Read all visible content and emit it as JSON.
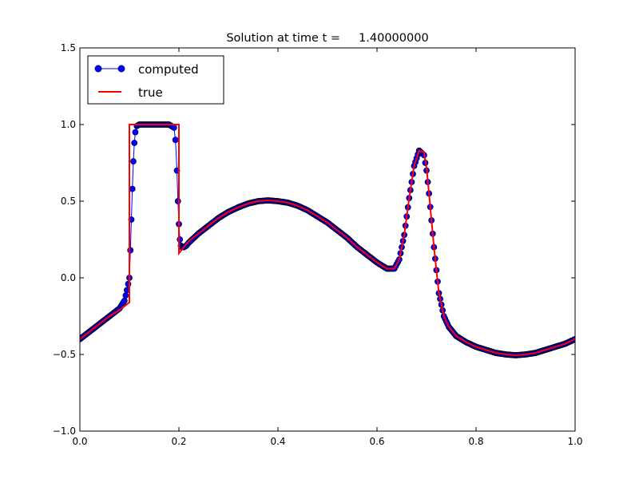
{
  "chart_data": {
    "type": "line",
    "title": "Solution at time t =     1.40000000",
    "xlabel": "",
    "ylabel": "",
    "xlim": [
      0.0,
      1.0
    ],
    "ylim": [
      -1.0,
      1.5
    ],
    "x_ticks": [
      "0.0",
      "0.2",
      "0.4",
      "0.6",
      "0.8",
      "1.0"
    ],
    "y_ticks": [
      "−1.0",
      "−0.5",
      "0.0",
      "0.5",
      "1.0",
      "1.5"
    ],
    "x_tick_values": [
      0.0,
      0.2,
      0.4,
      0.6,
      0.8,
      1.0
    ],
    "y_tick_values": [
      -1.0,
      -0.5,
      0.0,
      0.5,
      1.0,
      1.5
    ],
    "grid": false,
    "legend_position": "upper-left",
    "series": [
      {
        "name": "computed",
        "style": "line-with-circle-markers",
        "color": "#0000ff",
        "marker_edge_color": "#000000",
        "x": [
          0.0,
          0.02,
          0.04,
          0.06,
          0.08,
          0.09,
          0.095,
          0.1,
          0.102,
          0.104,
          0.106,
          0.108,
          0.11,
          0.112,
          0.115,
          0.12,
          0.14,
          0.16,
          0.18,
          0.19,
          0.193,
          0.196,
          0.198,
          0.2,
          0.202,
          0.204,
          0.206,
          0.208,
          0.21,
          0.215,
          0.22,
          0.24,
          0.26,
          0.28,
          0.3,
          0.32,
          0.34,
          0.36,
          0.38,
          0.4,
          0.42,
          0.44,
          0.46,
          0.48,
          0.5,
          0.52,
          0.54,
          0.56,
          0.58,
          0.6,
          0.62,
          0.635,
          0.645,
          0.655,
          0.665,
          0.675,
          0.685,
          0.695,
          0.7,
          0.705,
          0.715,
          0.725,
          0.735,
          0.745,
          0.76,
          0.78,
          0.8,
          0.82,
          0.84,
          0.86,
          0.88,
          0.9,
          0.92,
          0.94,
          0.96,
          0.98,
          1.0
        ],
        "y": [
          -0.4,
          -0.35,
          -0.3,
          -0.25,
          -0.2,
          -0.15,
          -0.08,
          0.0,
          0.18,
          0.38,
          0.58,
          0.76,
          0.88,
          0.95,
          0.99,
          1.0,
          1.0,
          1.0,
          1.0,
          0.98,
          0.9,
          0.7,
          0.5,
          0.35,
          0.25,
          0.21,
          0.2,
          0.2,
          0.2,
          0.21,
          0.23,
          0.29,
          0.34,
          0.39,
          0.43,
          0.46,
          0.485,
          0.5,
          0.505,
          0.5,
          0.49,
          0.47,
          0.44,
          0.4,
          0.36,
          0.31,
          0.26,
          0.2,
          0.15,
          0.1,
          0.06,
          0.06,
          0.12,
          0.28,
          0.52,
          0.73,
          0.83,
          0.8,
          0.7,
          0.55,
          0.2,
          -0.1,
          -0.25,
          -0.32,
          -0.38,
          -0.42,
          -0.45,
          -0.47,
          -0.49,
          -0.5,
          -0.505,
          -0.5,
          -0.49,
          -0.47,
          -0.45,
          -0.43,
          -0.4
        ]
      },
      {
        "name": "true",
        "style": "line",
        "color": "#ff0000",
        "x": [
          0.0,
          0.02,
          0.04,
          0.06,
          0.08,
          0.1,
          0.1,
          0.2,
          0.2,
          0.22,
          0.24,
          0.26,
          0.28,
          0.3,
          0.32,
          0.34,
          0.36,
          0.38,
          0.4,
          0.42,
          0.44,
          0.46,
          0.48,
          0.5,
          0.52,
          0.54,
          0.56,
          0.58,
          0.6,
          0.62,
          0.635,
          0.645,
          0.655,
          0.665,
          0.675,
          0.685,
          0.695,
          0.7,
          0.705,
          0.715,
          0.725,
          0.735,
          0.745,
          0.76,
          0.78,
          0.8,
          0.82,
          0.84,
          0.86,
          0.88,
          0.9,
          0.92,
          0.94,
          0.96,
          0.98,
          1.0
        ],
        "y": [
          -0.4,
          -0.35,
          -0.3,
          -0.25,
          -0.21,
          -0.16,
          1.0,
          1.0,
          0.16,
          0.24,
          0.29,
          0.34,
          0.39,
          0.43,
          0.46,
          0.485,
          0.5,
          0.505,
          0.5,
          0.49,
          0.47,
          0.44,
          0.4,
          0.36,
          0.31,
          0.26,
          0.2,
          0.15,
          0.1,
          0.06,
          0.06,
          0.12,
          0.28,
          0.52,
          0.73,
          0.83,
          0.82,
          0.72,
          0.55,
          0.2,
          -0.1,
          -0.25,
          -0.32,
          -0.38,
          -0.42,
          -0.45,
          -0.47,
          -0.49,
          -0.5,
          -0.505,
          -0.5,
          -0.49,
          -0.47,
          -0.45,
          -0.43,
          -0.4
        ]
      }
    ]
  }
}
